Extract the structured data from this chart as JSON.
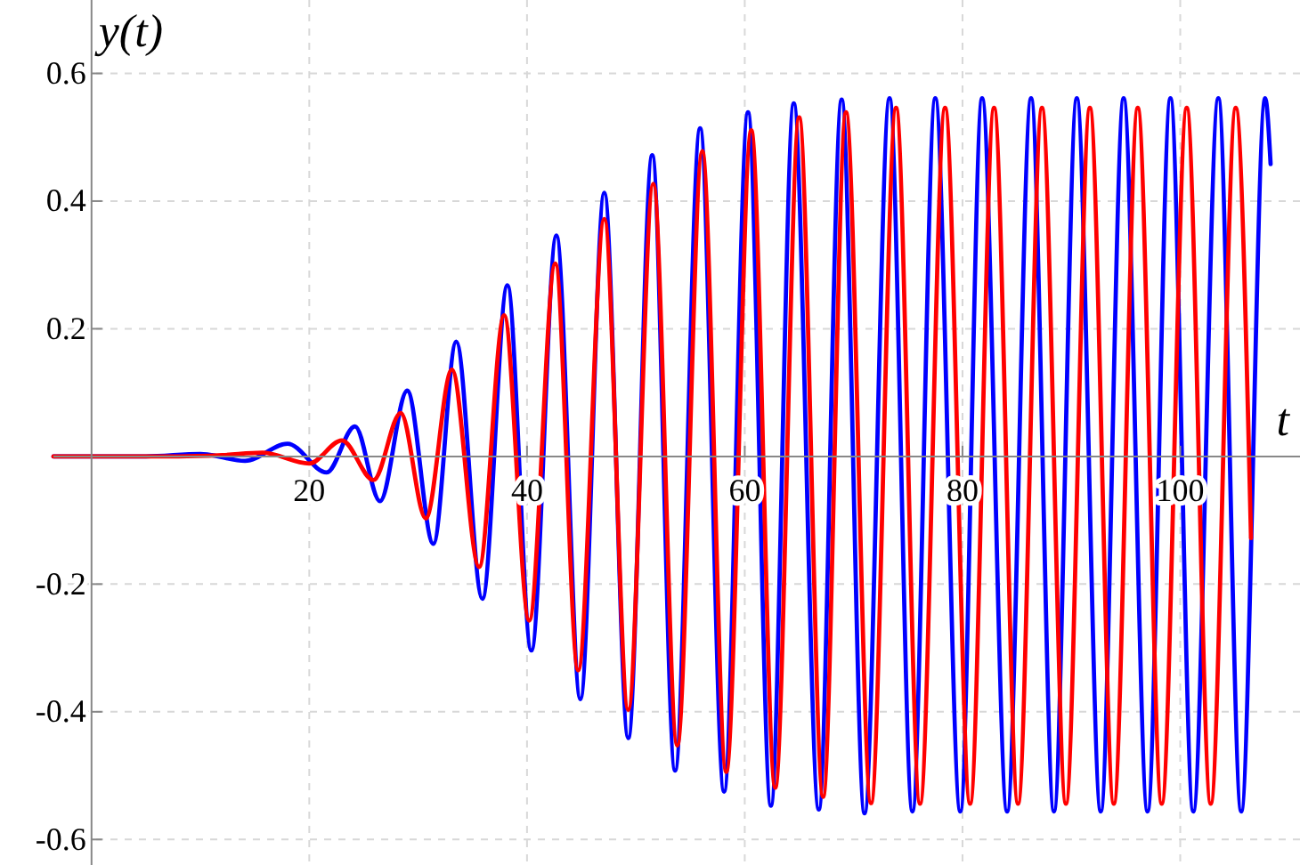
{
  "chart_data": {
    "type": "line",
    "xlabel": "t",
    "ylabel": "y(t)",
    "xlim": [
      -3.5,
      111
    ],
    "ylim": [
      -0.64,
      0.715
    ],
    "xticks": [
      20,
      40,
      60,
      80,
      100
    ],
    "yticks": [
      -0.6,
      -0.4,
      -0.2,
      0.2,
      0.4,
      0.6
    ],
    "grid": true,
    "marker": "none",
    "line_style": "solid",
    "series": [
      {
        "color": "#0000ff",
        "x": [
          -3.5,
          5,
          10,
          14.1,
          18.0,
          21.6,
          24.2,
          26.5,
          29.0,
          31.4,
          33.5,
          35.9,
          38.2,
          40.4,
          42.7,
          44.9,
          47.1,
          49.3,
          51.5,
          53.6,
          55.9,
          58.1,
          60.3,
          62.4,
          64.5,
          66.8,
          68.9,
          71.0,
          73.3,
          75.4,
          77.5,
          79.8,
          81.8,
          84.1,
          86.3,
          88.4,
          90.5,
          92.7,
          94.8,
          97.0,
          99.1,
          101.2,
          103.5,
          105.6,
          107.8,
          108.3
        ],
        "values": [
          0,
          0,
          0.004,
          -0.007,
          0.02,
          -0.025,
          0.047,
          -0.07,
          0.103,
          -0.137,
          0.18,
          -0.223,
          0.268,
          -0.304,
          0.346,
          -0.38,
          0.413,
          -0.441,
          0.472,
          -0.492,
          0.514,
          -0.525,
          0.539,
          -0.547,
          0.553,
          -0.553,
          0.559,
          -0.559,
          0.561,
          -0.556,
          0.561,
          -0.556,
          0.561,
          -0.556,
          0.561,
          -0.556,
          0.561,
          -0.556,
          0.561,
          -0.556,
          0.561,
          -0.556,
          0.561,
          -0.556,
          0.561,
          0.458
        ]
      },
      {
        "color": "#ff0000",
        "x": [
          -3.5,
          8,
          12,
          15.7,
          20.0,
          23.0,
          25.9,
          28.4,
          30.7,
          33.1,
          35.6,
          37.9,
          40.2,
          42.6,
          44.7,
          47.1,
          49.3,
          51.6,
          53.8,
          56.1,
          58.3,
          60.6,
          62.8,
          65.0,
          67.2,
          69.3,
          71.6,
          73.9,
          76.1,
          78.4,
          80.7,
          82.9,
          85.1,
          87.3,
          89.5,
          91.7,
          93.9,
          96.1,
          98.3,
          100.6,
          102.8,
          105.1,
          106.5
        ],
        "values": [
          0,
          0,
          0.002,
          0.006,
          -0.011,
          0.025,
          -0.037,
          0.068,
          -0.097,
          0.136,
          -0.173,
          0.221,
          -0.257,
          0.302,
          -0.335,
          0.372,
          -0.397,
          0.427,
          -0.453,
          0.478,
          -0.494,
          0.511,
          -0.519,
          0.531,
          -0.533,
          0.539,
          -0.543,
          0.546,
          -0.544,
          0.546,
          -0.544,
          0.546,
          -0.544,
          0.546,
          -0.544,
          0.546,
          -0.544,
          0.546,
          -0.544,
          0.546,
          -0.544,
          0.546,
          -0.128
        ]
      }
    ]
  }
}
